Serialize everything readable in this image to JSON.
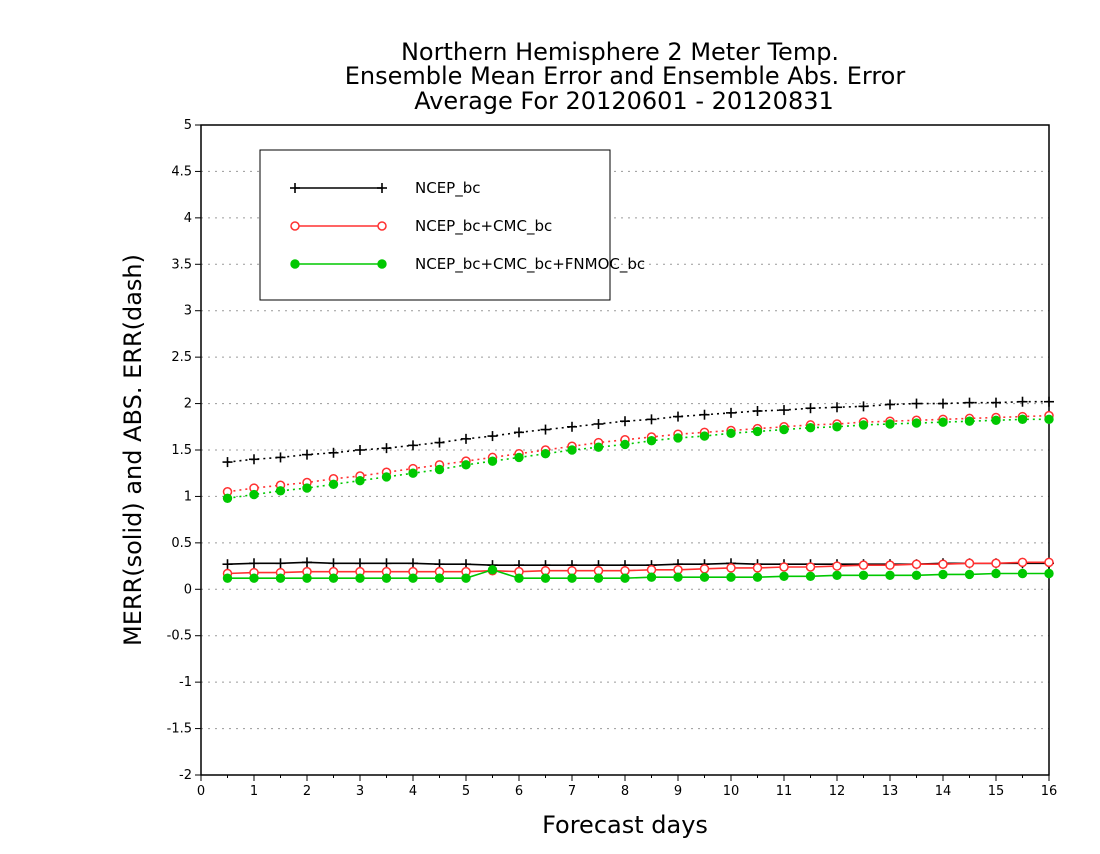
{
  "chart_data": {
    "type": "line",
    "title_lines": [
      "Northern Hemisphere 2 Meter Temp.",
      "Ensemble Mean Error and Ensemble Abs. Error",
      "Average For 20120601 - 20120831"
    ],
    "xlabel": "Forecast days",
    "ylabel": "MERR(solid) and ABS. ERR(dash)",
    "xlim": [
      0,
      16
    ],
    "ylim": [
      -2,
      5
    ],
    "xticks": [
      "0",
      "1",
      "2",
      "3",
      "4",
      "5",
      "6",
      "7",
      "8",
      "9",
      "10",
      "11",
      "12",
      "13",
      "14",
      "15",
      "16"
    ],
    "yticks": [
      "5",
      "4.5",
      "4",
      "3.5",
      "3",
      "2.5",
      "2",
      "1.5",
      "1",
      "0.5",
      "0",
      "-0.5",
      "-1",
      "-1.5",
      "-2"
    ],
    "grid": "horizontal dotted",
    "legend_position": "top-left",
    "x": [
      0.5,
      1,
      1.5,
      2,
      2.5,
      3,
      3.5,
      4,
      4.5,
      5,
      5.5,
      6,
      6.5,
      7,
      7.5,
      8,
      8.5,
      9,
      9.5,
      10,
      10.5,
      11,
      11.5,
      12,
      12.5,
      13,
      13.5,
      14,
      14.5,
      15,
      15.5,
      16
    ],
    "series": [
      {
        "name": "NCEP_bc",
        "color": "#000000",
        "marker": "plus",
        "merr": [
          0.27,
          0.28,
          0.28,
          0.29,
          0.28,
          0.28,
          0.28,
          0.28,
          0.27,
          0.27,
          0.26,
          0.26,
          0.26,
          0.26,
          0.26,
          0.26,
          0.26,
          0.27,
          0.27,
          0.28,
          0.27,
          0.27,
          0.27,
          0.27,
          0.27,
          0.27,
          0.27,
          0.28,
          0.28,
          0.28,
          0.28,
          0.28
        ],
        "abs_err": [
          1.37,
          1.4,
          1.42,
          1.45,
          1.47,
          1.5,
          1.52,
          1.55,
          1.58,
          1.62,
          1.65,
          1.69,
          1.72,
          1.75,
          1.78,
          1.81,
          1.83,
          1.86,
          1.88,
          1.9,
          1.92,
          1.93,
          1.95,
          1.96,
          1.97,
          1.99,
          2.0,
          2.0,
          2.01,
          2.01,
          2.02,
          2.02
        ]
      },
      {
        "name": "NCEP_bc+CMC_bc",
        "color": "#ff3030",
        "marker": "open-circle",
        "merr": [
          0.17,
          0.18,
          0.18,
          0.19,
          0.19,
          0.19,
          0.19,
          0.19,
          0.19,
          0.19,
          0.2,
          0.19,
          0.2,
          0.2,
          0.2,
          0.2,
          0.21,
          0.21,
          0.22,
          0.23,
          0.23,
          0.24,
          0.24,
          0.25,
          0.26,
          0.26,
          0.27,
          0.27,
          0.28,
          0.28,
          0.29,
          0.29
        ],
        "abs_err": [
          1.05,
          1.09,
          1.12,
          1.15,
          1.19,
          1.22,
          1.26,
          1.3,
          1.34,
          1.38,
          1.42,
          1.46,
          1.5,
          1.54,
          1.58,
          1.61,
          1.64,
          1.67,
          1.69,
          1.71,
          1.73,
          1.75,
          1.77,
          1.78,
          1.8,
          1.81,
          1.82,
          1.83,
          1.84,
          1.85,
          1.86,
          1.87
        ]
      },
      {
        "name": "NCEP_bc+CMC_bc+FNMOC_bc",
        "color": "#00c800",
        "marker": "filled-circle",
        "merr": [
          0.12,
          0.12,
          0.12,
          0.12,
          0.12,
          0.12,
          0.12,
          0.12,
          0.12,
          0.12,
          0.21,
          0.12,
          0.12,
          0.12,
          0.12,
          0.12,
          0.13,
          0.13,
          0.13,
          0.13,
          0.13,
          0.14,
          0.14,
          0.15,
          0.15,
          0.15,
          0.15,
          0.16,
          0.16,
          0.17,
          0.17,
          0.17
        ],
        "abs_err": [
          0.98,
          1.02,
          1.06,
          1.09,
          1.13,
          1.17,
          1.21,
          1.25,
          1.29,
          1.34,
          1.38,
          1.42,
          1.46,
          1.5,
          1.53,
          1.56,
          1.6,
          1.63,
          1.65,
          1.68,
          1.7,
          1.72,
          1.74,
          1.75,
          1.77,
          1.78,
          1.79,
          1.8,
          1.81,
          1.82,
          1.83,
          1.83
        ]
      }
    ]
  }
}
